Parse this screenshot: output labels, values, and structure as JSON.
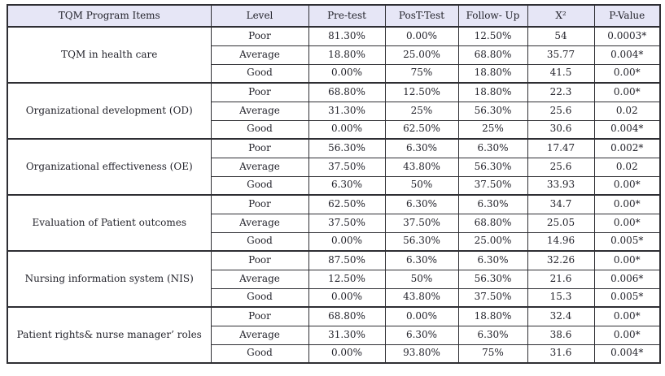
{
  "colors": {
    "header_bg": "#e6e6f6",
    "border": "#2e2e33",
    "text": "#24242c",
    "page_bg": "#ffffff"
  },
  "table": {
    "headers": [
      "TQM Program Items",
      "Level",
      "Pre-test",
      "PosT-Test",
      "Follow- Up",
      "X²",
      "P-Value"
    ],
    "groups": [
      {
        "item": "TQM in health care",
        "rows": [
          [
            "Poor",
            "81.30%",
            "0.00%",
            "12.50%",
            "54",
            "0.0003*"
          ],
          [
            "Average",
            "18.80%",
            "25.00%",
            "68.80%",
            "35.77",
            "0.004*"
          ],
          [
            "Good",
            "0.00%",
            "75%",
            "18.80%",
            "41.5",
            "0.00*"
          ]
        ]
      },
      {
        "item": "Organizational development (OD)",
        "rows": [
          [
            "Poor",
            "68.80%",
            "12.50%",
            "18.80%",
            "22.3",
            "0.00*"
          ],
          [
            "Average",
            "31.30%",
            "25%",
            "56.30%",
            "25.6",
            "0.02"
          ],
          [
            "Good",
            "0.00%",
            "62.50%",
            "25%",
            "30.6",
            "0.004*"
          ]
        ]
      },
      {
        "item": "Organizational effectiveness (OE)",
        "rows": [
          [
            "Poor",
            "56.30%",
            "6.30%",
            "6.30%",
            "17.47",
            "0.002*"
          ],
          [
            "Average",
            "37.50%",
            "43.80%",
            "56.30%",
            "25.6",
            "0.02"
          ],
          [
            "Good",
            "6.30%",
            "50%",
            "37.50%",
            "33.93",
            "0.00*"
          ]
        ]
      },
      {
        "item": "Evaluation of Patient outcomes",
        "rows": [
          [
            "Poor",
            "62.50%",
            "6.30%",
            "6.30%",
            "34.7",
            "0.00*"
          ],
          [
            "Average",
            "37.50%",
            "37.50%",
            "68.80%",
            "25.05",
            "0.00*"
          ],
          [
            "Good",
            "0.00%",
            "56.30%",
            "25.00%",
            "14.96",
            "0.005*"
          ]
        ]
      },
      {
        "item": "Nursing information system (NIS)",
        "rows": [
          [
            "Poor",
            "87.50%",
            "6.30%",
            "6.30%",
            "32.26",
            "0.00*"
          ],
          [
            "Average",
            "12.50%",
            "50%",
            "56.30%",
            "21.6",
            "0.006*"
          ],
          [
            "Good",
            "0.00%",
            "43.80%",
            "37.50%",
            "15.3",
            "0.005*"
          ]
        ]
      },
      {
        "item": "Patient rights& nurse manager’ roles",
        "rows": [
          [
            "Poor",
            "68.80%",
            "0.00%",
            "18.80%",
            "32.4",
            "0.00*"
          ],
          [
            "Average",
            "31.30%",
            "6.30%",
            "6.30%",
            "38.6",
            "0.00*"
          ],
          [
            "Good",
            "0.00%",
            "93.80%",
            "75%",
            "31.6",
            "0.004*"
          ]
        ]
      }
    ]
  }
}
